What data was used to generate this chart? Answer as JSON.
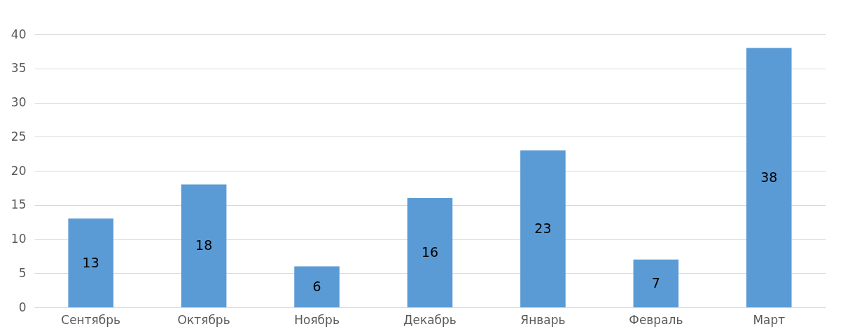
{
  "chart_data": {
    "type": "bar",
    "categories": [
      "Сентябрь",
      "Октябрь",
      "Ноябрь",
      "Декабрь",
      "Январь",
      "Февраль",
      "Март"
    ],
    "values": [
      13,
      18,
      6,
      16,
      23,
      7,
      38
    ],
    "color": "#5b9bd5",
    "ylim": [
      0,
      40
    ],
    "yticks": [
      0,
      5,
      10,
      15,
      20,
      25,
      30,
      35,
      40
    ],
    "grid": "y",
    "data_labels": true
  }
}
